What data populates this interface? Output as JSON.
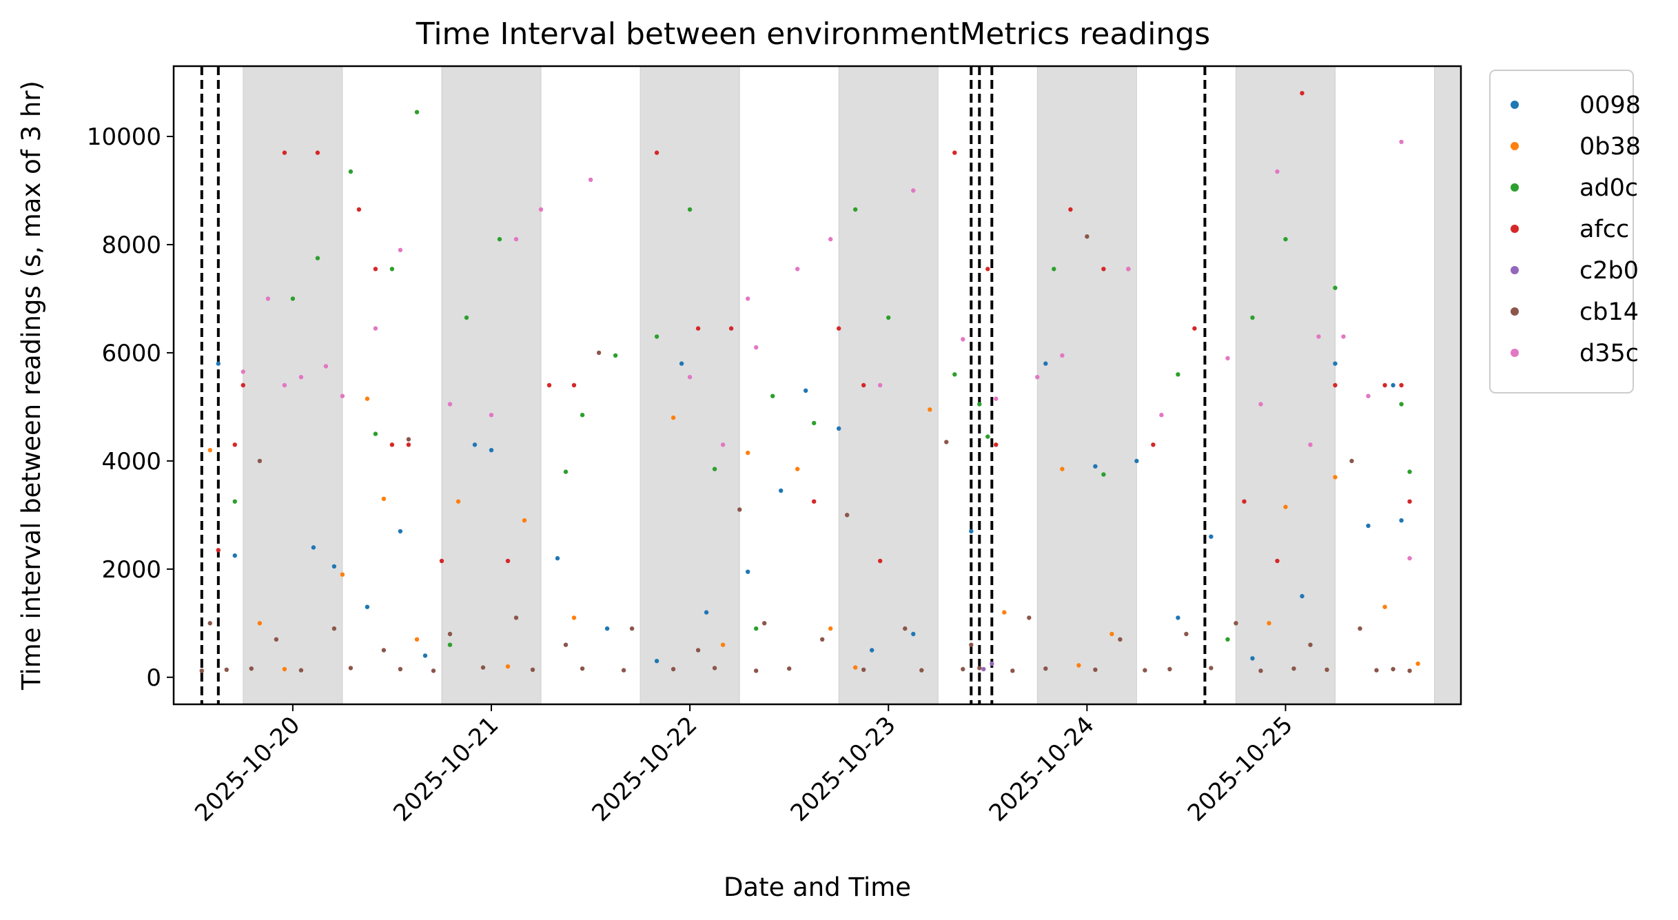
{
  "chart_data": {
    "type": "scatter",
    "title": "Time Interval between environmentMetrics readings",
    "xlabel": "Date and Time",
    "ylabel": "Time interval between readings (s, max of 3 hr)",
    "x_range": [
      "2025-10-19T09:36",
      "2025-10-25T21:12"
    ],
    "ylim": [
      -500,
      11300
    ],
    "x_ticks": [
      "2025-10-20",
      "2025-10-21",
      "2025-10-22",
      "2025-10-23",
      "2025-10-24",
      "2025-10-25"
    ],
    "y_ticks": [
      0,
      2000,
      4000,
      6000,
      8000,
      10000
    ],
    "y_tick_labels": [
      "0",
      "2000",
      "4000",
      "6000",
      "8000",
      "10000"
    ],
    "grid": false,
    "legend_placement": "outside upper right",
    "shaded_periods": [
      [
        "2025-10-19T18:00",
        "2025-10-20T06:00"
      ],
      [
        "2025-10-20T18:00",
        "2025-10-21T06:00"
      ],
      [
        "2025-10-21T18:00",
        "2025-10-22T06:00"
      ],
      [
        "2025-10-22T18:00",
        "2025-10-23T06:00"
      ],
      [
        "2025-10-23T18:00",
        "2025-10-24T06:00"
      ],
      [
        "2025-10-24T18:00",
        "2025-10-25T06:00"
      ],
      [
        "2025-10-25T18:00",
        "2025-10-25T21:12"
      ]
    ],
    "vertical_lines": [
      "2025-10-19T13:00",
      "2025-10-19T15:00",
      "2025-10-23T10:00",
      "2025-10-23T11:00",
      "2025-10-23T12:30",
      "2025-10-24T14:15"
    ],
    "series": [
      {
        "name": "0098",
        "color": "#1f77b4",
        "points": [
          [
            "2025-10-19T15:00",
            5800
          ],
          [
            "2025-10-19T17:00",
            2250
          ],
          [
            "2025-10-20T02:30",
            2400
          ],
          [
            "2025-10-20T05:00",
            2050
          ],
          [
            "2025-10-20T13:00",
            2700
          ],
          [
            "2025-10-20T22:00",
            4300
          ],
          [
            "2025-10-21T00:00",
            4200
          ],
          [
            "2025-10-21T08:00",
            2200
          ],
          [
            "2025-10-21T23:00",
            5800
          ],
          [
            "2025-10-22T07:00",
            1950
          ],
          [
            "2025-10-22T11:00",
            3450
          ],
          [
            "2025-10-22T14:00",
            5300
          ],
          [
            "2025-10-22T18:00",
            4600
          ],
          [
            "2025-10-23T10:00",
            2700
          ],
          [
            "2025-10-23T19:00",
            5800
          ],
          [
            "2025-10-24T01:00",
            3900
          ],
          [
            "2025-10-24T06:00",
            4000
          ],
          [
            "2025-10-24T15:00",
            2600
          ],
          [
            "2025-10-25T06:00",
            5800
          ],
          [
            "2025-10-25T10:00",
            2800
          ],
          [
            "2025-10-25T13:00",
            5400
          ],
          [
            "2025-10-25T14:00",
            2900
          ],
          [
            "2025-10-20T09:00",
            1300
          ],
          [
            "2025-10-21T14:00",
            900
          ],
          [
            "2025-10-22T02:00",
            1200
          ],
          [
            "2025-10-23T03:00",
            800
          ],
          [
            "2025-10-24T11:00",
            1100
          ],
          [
            "2025-10-25T02:00",
            1500
          ],
          [
            "2025-10-20T16:00",
            400
          ],
          [
            "2025-10-21T20:00",
            300
          ],
          [
            "2025-10-22T22:00",
            500
          ],
          [
            "2025-10-24T20:00",
            350
          ]
        ]
      },
      {
        "name": "0b38",
        "color": "#ff7f0e",
        "points": [
          [
            "2025-10-19T14:00",
            4200
          ],
          [
            "2025-10-20T06:00",
            1900
          ],
          [
            "2025-10-20T09:00",
            5150
          ],
          [
            "2025-10-20T11:00",
            3300
          ],
          [
            "2025-10-20T20:00",
            3250
          ],
          [
            "2025-10-21T04:00",
            2900
          ],
          [
            "2025-10-21T22:00",
            4800
          ],
          [
            "2025-10-22T07:00",
            4150
          ],
          [
            "2025-10-22T13:00",
            3850
          ],
          [
            "2025-10-23T05:00",
            4950
          ],
          [
            "2025-10-23T21:00",
            3850
          ],
          [
            "2025-10-25T00:00",
            3150
          ],
          [
            "2025-10-25T06:00",
            3700
          ],
          [
            "2025-10-19T20:00",
            1000
          ],
          [
            "2025-10-20T15:00",
            700
          ],
          [
            "2025-10-21T10:00",
            1100
          ],
          [
            "2025-10-22T04:00",
            600
          ],
          [
            "2025-10-22T17:00",
            900
          ],
          [
            "2025-10-23T14:00",
            1200
          ],
          [
            "2025-10-24T03:00",
            800
          ],
          [
            "2025-10-24T22:00",
            1000
          ],
          [
            "2025-10-25T12:00",
            1300
          ],
          [
            "2025-10-19T23:00",
            150
          ],
          [
            "2025-10-21T02:00",
            200
          ],
          [
            "2025-10-22T20:00",
            180
          ],
          [
            "2025-10-23T23:00",
            220
          ],
          [
            "2025-10-25T16:00",
            250
          ]
        ]
      },
      {
        "name": "ad0c",
        "color": "#2ca02c",
        "points": [
          [
            "2025-10-19T17:00",
            3250
          ],
          [
            "2025-10-20T00:00",
            7000
          ],
          [
            "2025-10-20T03:00",
            7750
          ],
          [
            "2025-10-20T07:00",
            9350
          ],
          [
            "2025-10-20T10:00",
            4500
          ],
          [
            "2025-10-20T12:00",
            7550
          ],
          [
            "2025-10-20T15:00",
            10450
          ],
          [
            "2025-10-20T21:00",
            6650
          ],
          [
            "2025-10-21T01:00",
            8100
          ],
          [
            "2025-10-21T09:00",
            3800
          ],
          [
            "2025-10-21T11:00",
            4850
          ],
          [
            "2025-10-21T15:00",
            5950
          ],
          [
            "2025-10-21T20:00",
            6300
          ],
          [
            "2025-10-22T00:00",
            8650
          ],
          [
            "2025-10-22T03:00",
            3850
          ],
          [
            "2025-10-22T10:00",
            5200
          ],
          [
            "2025-10-22T15:00",
            4700
          ],
          [
            "2025-10-22T20:00",
            8650
          ],
          [
            "2025-10-23T00:00",
            6650
          ],
          [
            "2025-10-23T08:00",
            5600
          ],
          [
            "2025-10-23T11:00",
            5050
          ],
          [
            "2025-10-23T12:00",
            4450
          ],
          [
            "2025-10-23T20:00",
            7550
          ],
          [
            "2025-10-24T02:00",
            3750
          ],
          [
            "2025-10-24T11:00",
            5600
          ],
          [
            "2025-10-24T20:00",
            6650
          ],
          [
            "2025-10-25T00:00",
            8100
          ],
          [
            "2025-10-25T06:00",
            7200
          ],
          [
            "2025-10-25T14:00",
            5050
          ],
          [
            "2025-10-25T15:00",
            3800
          ],
          [
            "2025-10-20T19:00",
            600
          ],
          [
            "2025-10-22T08:00",
            900
          ],
          [
            "2025-10-24T17:00",
            700
          ]
        ]
      },
      {
        "name": "afcc",
        "color": "#d62728",
        "points": [
          [
            "2025-10-19T15:00",
            2350
          ],
          [
            "2025-10-19T17:00",
            4300
          ],
          [
            "2025-10-19T18:00",
            5400
          ],
          [
            "2025-10-19T23:00",
            9700
          ],
          [
            "2025-10-20T03:00",
            9700
          ],
          [
            "2025-10-20T08:00",
            8650
          ],
          [
            "2025-10-20T10:00",
            7550
          ],
          [
            "2025-10-20T12:00",
            4300
          ],
          [
            "2025-10-20T14:00",
            4300
          ],
          [
            "2025-10-21T02:00",
            2150
          ],
          [
            "2025-10-21T07:00",
            5400
          ],
          [
            "2025-10-21T10:00",
            5400
          ],
          [
            "2025-10-21T20:00",
            9700
          ],
          [
            "2025-10-22T01:00",
            6450
          ],
          [
            "2025-10-22T05:00",
            6450
          ],
          [
            "2025-10-22T15:00",
            3250
          ],
          [
            "2025-10-22T18:00",
            6450
          ],
          [
            "2025-10-22T21:00",
            5400
          ],
          [
            "2025-10-23T08:00",
            9700
          ],
          [
            "2025-10-23T12:00",
            7550
          ],
          [
            "2025-10-23T13:00",
            4300
          ],
          [
            "2025-10-23T22:00",
            8650
          ],
          [
            "2025-10-24T02:00",
            7550
          ],
          [
            "2025-10-24T05:00",
            7550
          ],
          [
            "2025-10-24T08:00",
            4300
          ],
          [
            "2025-10-24T13:00",
            6450
          ],
          [
            "2025-10-24T19:00",
            3250
          ],
          [
            "2025-10-25T02:00",
            10800
          ],
          [
            "2025-10-25T06:00",
            5400
          ],
          [
            "2025-10-25T12:00",
            5400
          ],
          [
            "2025-10-25T14:00",
            5400
          ],
          [
            "2025-10-25T15:00",
            3250
          ],
          [
            "2025-10-20T18:00",
            2150
          ],
          [
            "2025-10-22T23:00",
            2150
          ],
          [
            "2025-10-24T23:00",
            2150
          ]
        ]
      },
      {
        "name": "c2b0",
        "color": "#9467bd",
        "points": [
          [
            "2025-10-23T11:30",
            150
          ],
          [
            "2025-10-23T12:30",
            250
          ]
        ]
      },
      {
        "name": "cb14",
        "color": "#8c564b",
        "points": [
          [
            "2025-10-19T20:00",
            4000
          ],
          [
            "2025-10-20T14:00",
            4400
          ],
          [
            "2025-10-21T13:00",
            6000
          ],
          [
            "2025-10-22T06:00",
            3100
          ],
          [
            "2025-10-22T19:00",
            3000
          ],
          [
            "2025-10-23T07:00",
            4350
          ],
          [
            "2025-10-24T00:00",
            8150
          ],
          [
            "2025-10-25T08:00",
            4000
          ],
          [
            "2025-10-19T14:00",
            1000
          ],
          [
            "2025-10-19T22:00",
            700
          ],
          [
            "2025-10-20T05:00",
            900
          ],
          [
            "2025-10-20T11:00",
            500
          ],
          [
            "2025-10-20T19:00",
            800
          ],
          [
            "2025-10-21T03:00",
            1100
          ],
          [
            "2025-10-21T09:00",
            600
          ],
          [
            "2025-10-21T17:00",
            900
          ],
          [
            "2025-10-22T01:00",
            500
          ],
          [
            "2025-10-22T09:00",
            1000
          ],
          [
            "2025-10-22T16:00",
            700
          ],
          [
            "2025-10-23T02:00",
            900
          ],
          [
            "2025-10-23T10:00",
            600
          ],
          [
            "2025-10-23T17:00",
            1100
          ],
          [
            "2025-10-24T04:00",
            700
          ],
          [
            "2025-10-24T12:00",
            800
          ],
          [
            "2025-10-24T18:00",
            1000
          ],
          [
            "2025-10-25T03:00",
            600
          ],
          [
            "2025-10-25T09:00",
            900
          ],
          [
            "2025-10-19T13:00",
            120
          ],
          [
            "2025-10-19T16:00",
            140
          ],
          [
            "2025-10-19T19:00",
            160
          ],
          [
            "2025-10-20T01:00",
            130
          ],
          [
            "2025-10-20T07:00",
            170
          ],
          [
            "2025-10-20T13:00",
            150
          ],
          [
            "2025-10-20T17:00",
            120
          ],
          [
            "2025-10-20T23:00",
            180
          ],
          [
            "2025-10-21T05:00",
            140
          ],
          [
            "2025-10-21T11:00",
            160
          ],
          [
            "2025-10-21T16:00",
            130
          ],
          [
            "2025-10-21T22:00",
            150
          ],
          [
            "2025-10-22T03:00",
            170
          ],
          [
            "2025-10-22T08:00",
            120
          ],
          [
            "2025-10-22T12:00",
            160
          ],
          [
            "2025-10-22T21:00",
            140
          ],
          [
            "2025-10-23T04:00",
            130
          ],
          [
            "2025-10-23T09:00",
            150
          ],
          [
            "2025-10-23T11:00",
            170
          ],
          [
            "2025-10-23T15:00",
            120
          ],
          [
            "2025-10-23T19:00",
            160
          ],
          [
            "2025-10-24T01:00",
            140
          ],
          [
            "2025-10-24T07:00",
            130
          ],
          [
            "2025-10-24T10:00",
            150
          ],
          [
            "2025-10-24T15:00",
            170
          ],
          [
            "2025-10-24T21:00",
            120
          ],
          [
            "2025-10-25T01:00",
            160
          ],
          [
            "2025-10-25T05:00",
            140
          ],
          [
            "2025-10-25T11:00",
            130
          ],
          [
            "2025-10-25T13:00",
            150
          ],
          [
            "2025-10-25T15:00",
            120
          ]
        ]
      },
      {
        "name": "d35c",
        "color": "#e377c2",
        "points": [
          [
            "2025-10-19T18:00",
            5650
          ],
          [
            "2025-10-19T21:00",
            7000
          ],
          [
            "2025-10-19T23:00",
            5400
          ],
          [
            "2025-10-20T01:00",
            5550
          ],
          [
            "2025-10-20T04:00",
            5750
          ],
          [
            "2025-10-20T06:00",
            5200
          ],
          [
            "2025-10-20T10:00",
            6450
          ],
          [
            "2025-10-20T13:00",
            7900
          ],
          [
            "2025-10-20T19:00",
            5050
          ],
          [
            "2025-10-21T00:00",
            4850
          ],
          [
            "2025-10-21T03:00",
            8100
          ],
          [
            "2025-10-21T06:00",
            8650
          ],
          [
            "2025-10-21T12:00",
            9200
          ],
          [
            "2025-10-22T00:00",
            5550
          ],
          [
            "2025-10-22T04:00",
            4300
          ],
          [
            "2025-10-22T07:00",
            7000
          ],
          [
            "2025-10-22T08:00",
            6100
          ],
          [
            "2025-10-22T13:00",
            7550
          ],
          [
            "2025-10-22T17:00",
            8100
          ],
          [
            "2025-10-22T23:00",
            5400
          ],
          [
            "2025-10-23T03:00",
            9000
          ],
          [
            "2025-10-23T09:00",
            6250
          ],
          [
            "2025-10-23T13:00",
            5150
          ],
          [
            "2025-10-23T18:00",
            5550
          ],
          [
            "2025-10-23T21:00",
            5950
          ],
          [
            "2025-10-24T05:00",
            7550
          ],
          [
            "2025-10-24T09:00",
            4850
          ],
          [
            "2025-10-24T17:00",
            5900
          ],
          [
            "2025-10-24T21:00",
            5050
          ],
          [
            "2025-10-24T23:00",
            9350
          ],
          [
            "2025-10-25T03:00",
            4300
          ],
          [
            "2025-10-25T04:00",
            6300
          ],
          [
            "2025-10-25T07:00",
            6300
          ],
          [
            "2025-10-25T10:00",
            5200
          ],
          [
            "2025-10-25T14:00",
            9900
          ],
          [
            "2025-10-25T15:00",
            2200
          ]
        ]
      }
    ]
  }
}
